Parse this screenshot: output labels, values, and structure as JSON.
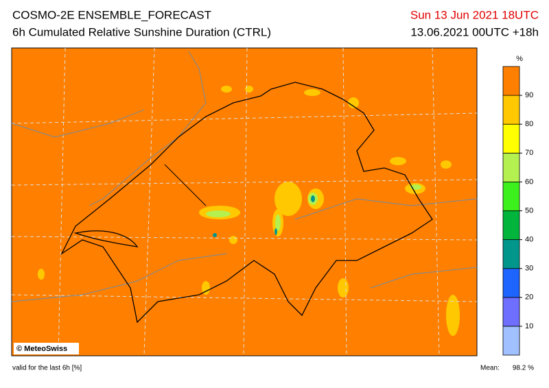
{
  "header": {
    "title": "COSMO-2E ENSEMBLE_FORECAST",
    "subtitle": "6h Cumulated Relative Sunshine Duration (CTRL)",
    "valid_time": "Sun 13 Jun 2021 18UTC",
    "run": "13.06.2021 00UTC +18h"
  },
  "colorbar": {
    "unit": "%",
    "lim": [
      0,
      100
    ],
    "ticks": [
      10,
      20,
      30,
      40,
      50,
      60,
      70,
      80,
      90
    ],
    "colors": [
      "#a0c0ff",
      "#6e6eff",
      "#1e64ff",
      "#00968c",
      "#00b43c",
      "#3cf01e",
      "#b4f050",
      "#ffff00",
      "#ffc800",
      "#ff8000"
    ]
  },
  "map": {
    "credit": "© MeteoSwiss"
  },
  "footer": {
    "note": "valid for the last 6h [%]",
    "mean_label": "Mean:",
    "mean_value": "98.2 %"
  }
}
